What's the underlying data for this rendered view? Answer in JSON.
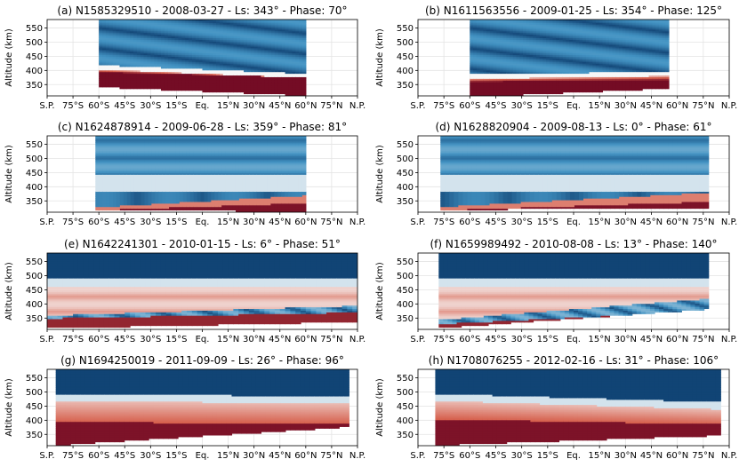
{
  "chart_data": {
    "type": "heatmap",
    "colormap": "RdBu_r",
    "colors": {
      "deep_red": "#67001f",
      "red": "#d6604d",
      "white": "#f7f7f7",
      "blue": "#4393c3",
      "deep_blue": "#053061"
    },
    "shared": {
      "ylabel": "Altitude (km)",
      "ylim": [
        310,
        580
      ],
      "yticks": [
        350,
        400,
        450,
        500,
        550
      ],
      "xlim": [
        -90,
        90
      ],
      "x": [
        -90,
        -75,
        -60,
        -45,
        -30,
        -15,
        0,
        15,
        30,
        45,
        60,
        75,
        90
      ],
      "xticklabels": [
        "S.P.",
        "75°S",
        "60°S",
        "45°S",
        "30°S",
        "15°S",
        "Eq.",
        "15°N",
        "30°N",
        "45°N",
        "60°N",
        "75°N",
        "N.P."
      ],
      "grid": true
    },
    "panels": [
      {
        "title": "(a) N1585329510 - 2008-03-27 - Ls: 343° - Phase: 70°",
        "lat_range": [
          -60,
          60
        ],
        "bottom_south": 345,
        "bottom_north": 315,
        "boundary_south": 405,
        "boundary_north": 375,
        "deep_red_top": 395,
        "structure": "upper-blue"
      },
      {
        "title": "(b) N1611563556 - 2009-01-25 - Ls: 354° - Phase: 125°",
        "lat_range": [
          -60,
          55
        ],
        "bottom_south": 310,
        "bottom_north": 340,
        "boundary_south": 372,
        "boundary_north": 382,
        "deep_red_top": 362,
        "structure": "upper-blue"
      },
      {
        "title": "(c) N1624878914 - 2009-06-28 - Ls: 359° - Phase: 81°",
        "lat_range": [
          -62,
          60
        ],
        "bottom_south": 322,
        "bottom_north": 316,
        "boundary_south": 328,
        "boundary_north": 370,
        "deep_red_top": 318,
        "structure": "layered"
      },
      {
        "title": "(d) N1628820904 - 2009-08-13 - Ls: 0° - Phase: 61°",
        "lat_range": [
          -77,
          78
        ],
        "bottom_south": 322,
        "bottom_north": 330,
        "boundary_south": 330,
        "boundary_north": 380,
        "deep_red_top": 318,
        "structure": "layered"
      },
      {
        "title": "(e) N1642241301 - 2010-01-15 - Ls: 6° - Phase: 51°",
        "lat_range": [
          -90,
          90
        ],
        "bottom_south": 318,
        "bottom_north": 340,
        "boundary_south": 360,
        "boundary_north": 395,
        "deep_red_top": 350,
        "structure": "mid-red"
      },
      {
        "title": "(f) N1659989492 - 2010-08-08 - Ls: 13° - Phase: 140°",
        "lat_range": [
          -78,
          78
        ],
        "bottom_south": 318,
        "bottom_north": 385,
        "boundary_south": 345,
        "boundary_north": 420,
        "deep_red_top": 330,
        "structure": "mid-red"
      },
      {
        "title": "(g) N1694250019 - 2011-09-09 - Ls: 26° - Phase: 96°",
        "lat_range": [
          -85,
          85
        ],
        "bottom_south": 315,
        "bottom_north": 380,
        "boundary_south": 470,
        "boundary_north": 460,
        "deep_red_top": 395,
        "structure": "red-low"
      },
      {
        "title": "(h) N1708076255 - 2012-02-16 - Ls: 31° - Phase: 106°",
        "lat_range": [
          -80,
          85
        ],
        "bottom_south": 315,
        "bottom_north": 350,
        "boundary_south": 470,
        "boundary_north": 440,
        "deep_red_top": 405,
        "structure": "red-low"
      }
    ]
  }
}
